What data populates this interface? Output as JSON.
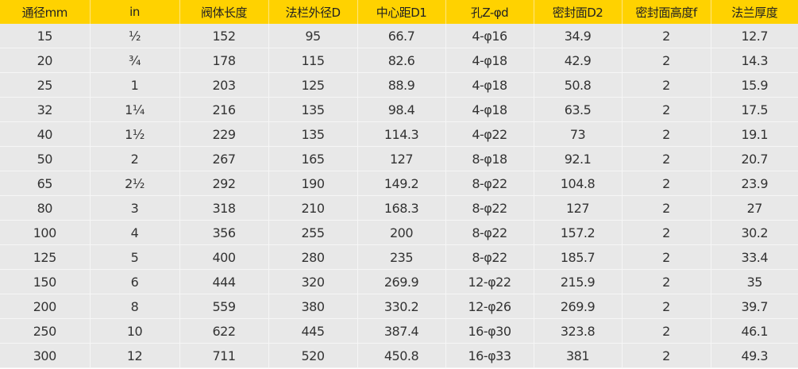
{
  "table": {
    "headers": [
      "通径mm",
      "in",
      "阀体长度",
      "法栏外径D",
      "中心距D1",
      "孔Z-φd",
      "密封面D2",
      "密封面高度f",
      "法兰厚度"
    ],
    "rows": [
      [
        "15",
        "½",
        "152",
        "95",
        "66.7",
        "4-φ16",
        "34.9",
        "2",
        "12.7"
      ],
      [
        "20",
        "¾",
        "178",
        "115",
        "82.6",
        "4-φ18",
        "42.9",
        "2",
        "14.3"
      ],
      [
        "25",
        "1",
        "203",
        "125",
        "88.9",
        "4-φ18",
        "50.8",
        "2",
        "15.9"
      ],
      [
        "32",
        "1¼",
        "216",
        "135",
        "98.4",
        "4-φ18",
        "63.5",
        "2",
        "17.5"
      ],
      [
        "40",
        "1½",
        "229",
        "135",
        "114.3",
        "4-φ22",
        "73",
        "2",
        "19.1"
      ],
      [
        "50",
        "2",
        "267",
        "165",
        "127",
        "8-φ18",
        "92.1",
        "2",
        "20.7"
      ],
      [
        "65",
        "2½",
        "292",
        "190",
        "149.2",
        "8-φ22",
        "104.8",
        "2",
        "23.9"
      ],
      [
        "80",
        "3",
        "318",
        "210",
        "168.3",
        "8-φ22",
        "127",
        "2",
        "27"
      ],
      [
        "100",
        "4",
        "356",
        "255",
        "200",
        "8-φ22",
        "157.2",
        "2",
        "30.2"
      ],
      [
        "125",
        "5",
        "400",
        "280",
        "235",
        "8-φ22",
        "185.7",
        "2",
        "33.4"
      ],
      [
        "150",
        "6",
        "444",
        "320",
        "269.9",
        "12-φ22",
        "215.9",
        "2",
        "35"
      ],
      [
        "200",
        "8",
        "559",
        "380",
        "330.2",
        "12-φ26",
        "269.9",
        "2",
        "39.7"
      ],
      [
        "250",
        "10",
        "622",
        "445",
        "387.4",
        "16-φ30",
        "323.8",
        "2",
        "46.1"
      ],
      [
        "300",
        "12",
        "711",
        "520",
        "450.8",
        "16-φ33",
        "381",
        "2",
        "49.3"
      ]
    ]
  },
  "colors": {
    "header_bg": "#ffd200",
    "body_bg": "#e8e8e8"
  }
}
